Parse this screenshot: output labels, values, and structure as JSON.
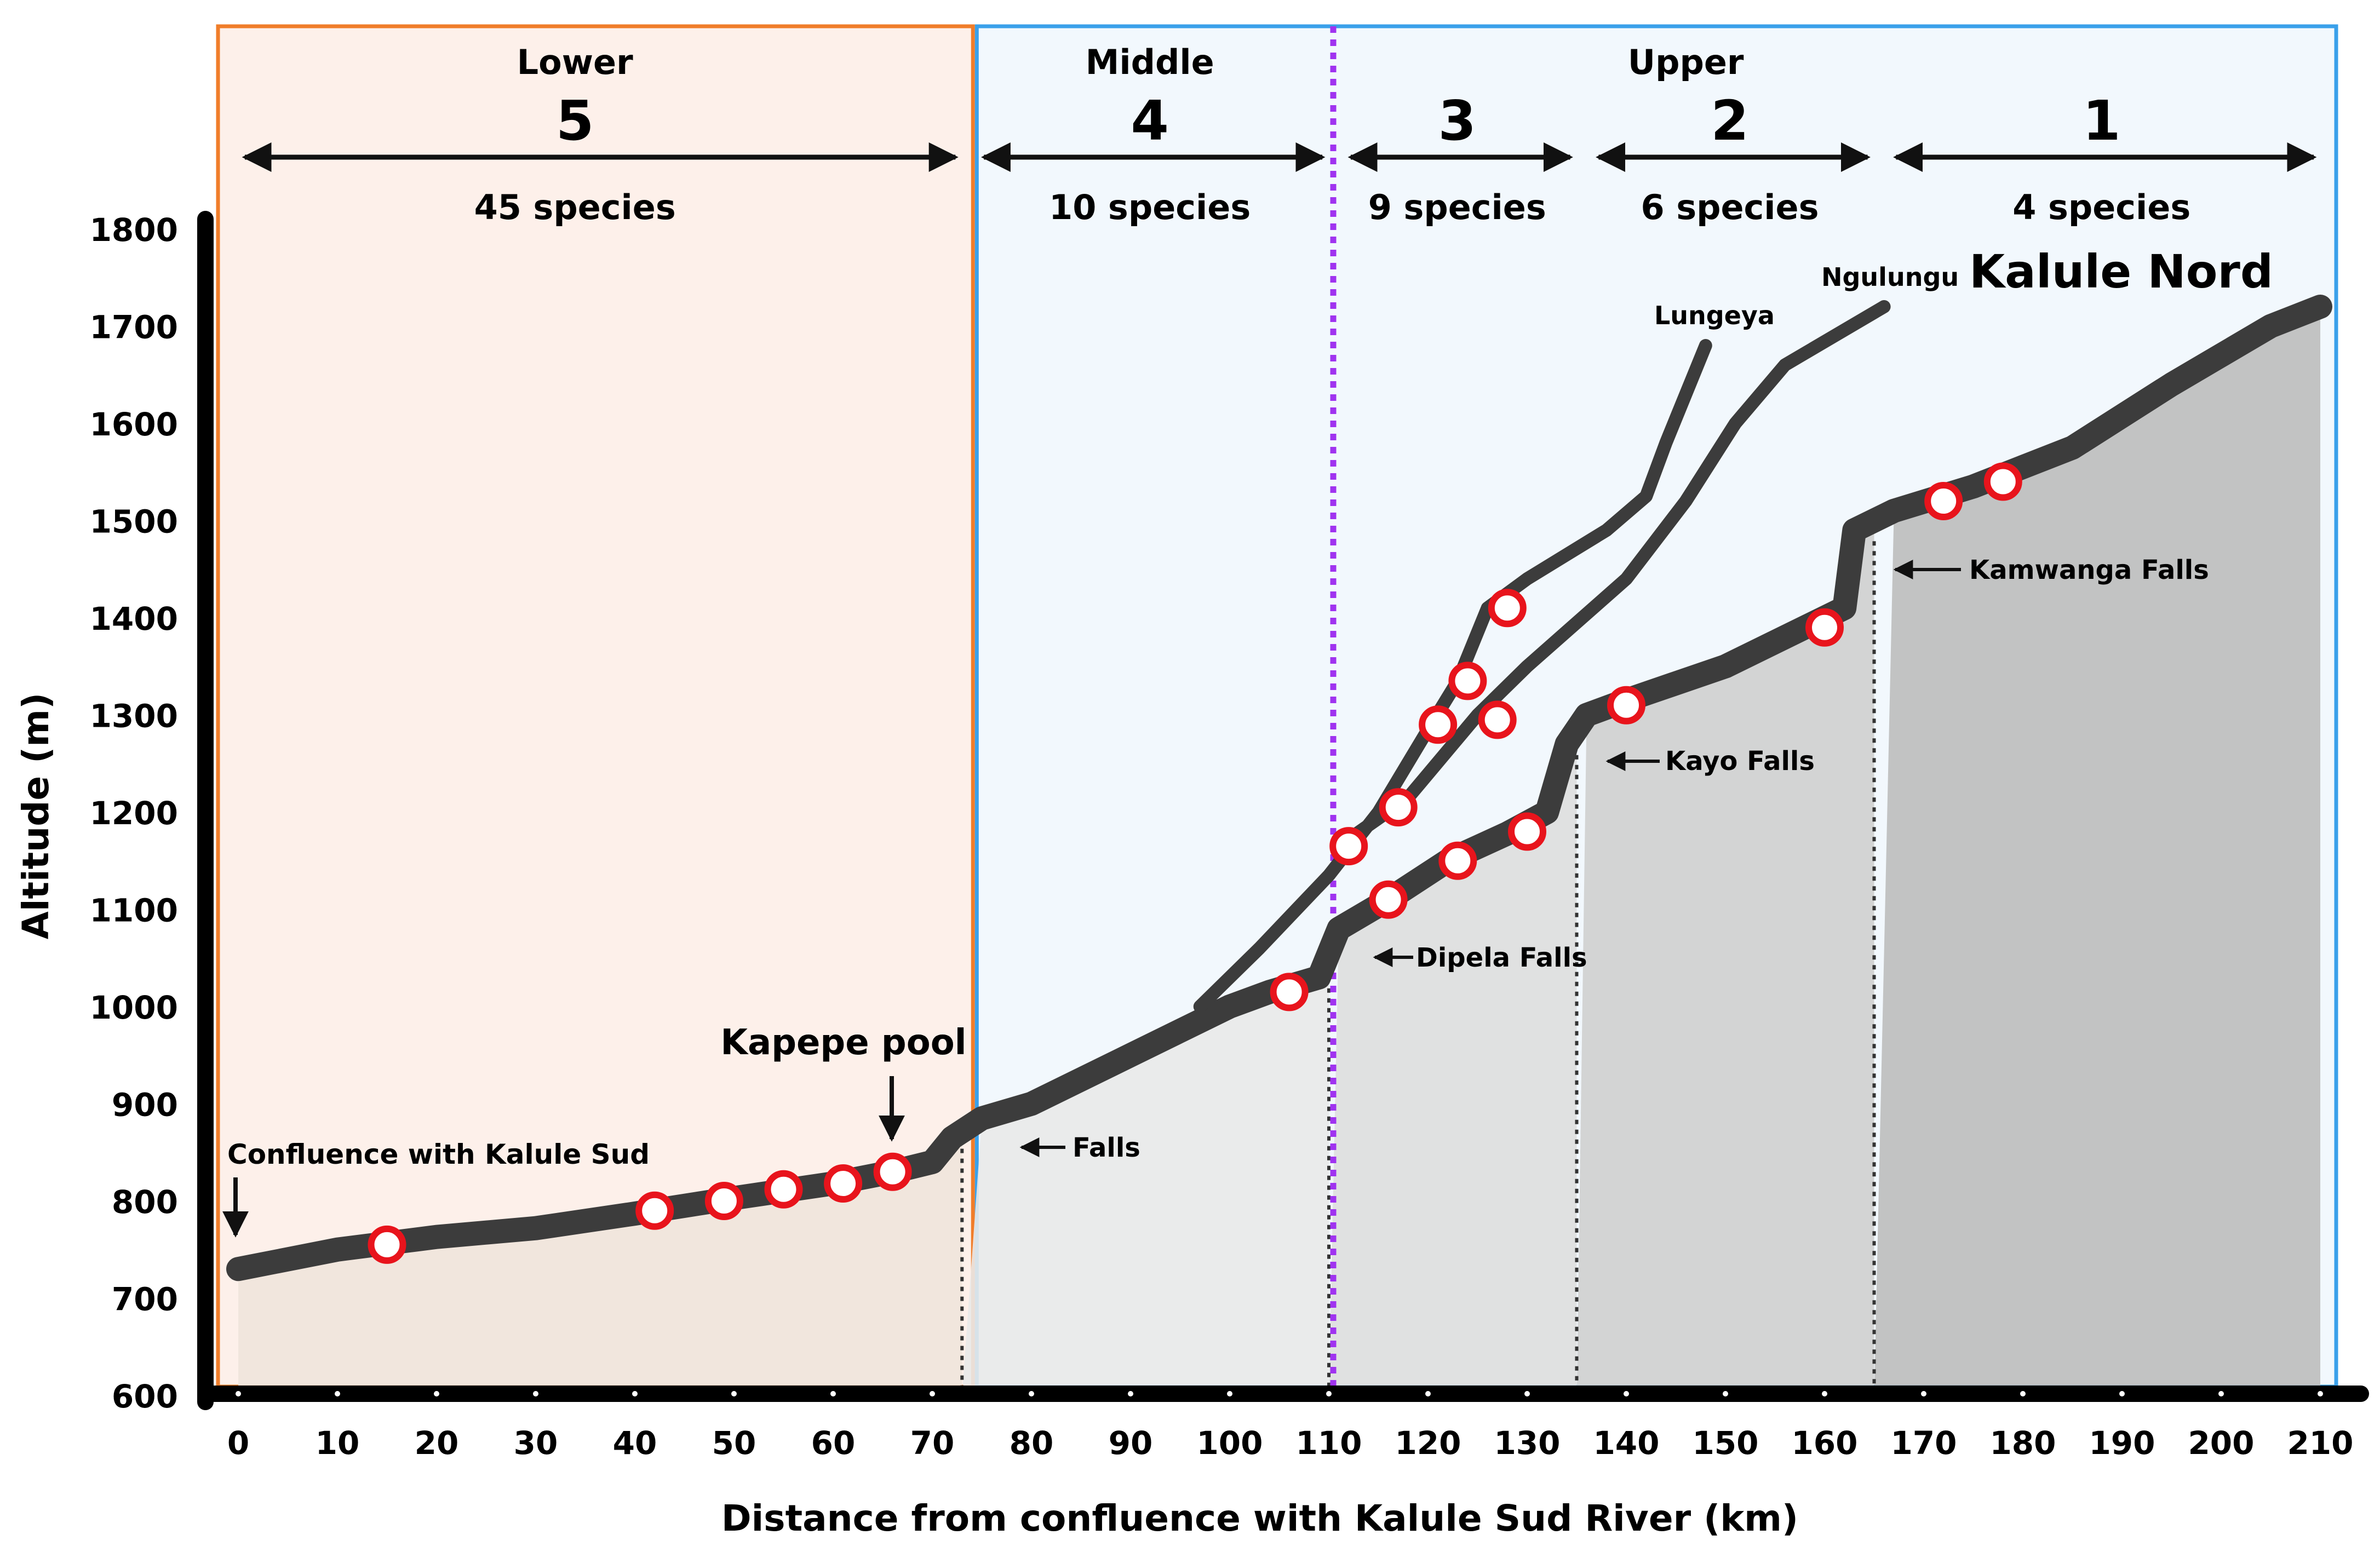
{
  "chart_data": {
    "type": "line",
    "title": "",
    "xlabel": "Distance from confluence with Kalule Sud River (km)",
    "ylabel": "Altitude (m)",
    "xlim": [
      0,
      210
    ],
    "ylim": [
      600,
      1800
    ],
    "x_ticks": [
      0,
      10,
      20,
      30,
      40,
      50,
      60,
      70,
      80,
      90,
      100,
      110,
      120,
      130,
      140,
      150,
      160,
      170,
      180,
      190,
      200,
      210
    ],
    "y_ticks": [
      600,
      700,
      800,
      900,
      1000,
      1100,
      1200,
      1300,
      1400,
      1500,
      1600,
      1700,
      1800
    ],
    "grid": false,
    "series": [
      {
        "name": "Kalule Nord",
        "points": [
          [
            0,
            730
          ],
          [
            10,
            750
          ],
          [
            20,
            763
          ],
          [
            30,
            772
          ],
          [
            40,
            787
          ],
          [
            50,
            803
          ],
          [
            60,
            818
          ],
          [
            66,
            830
          ],
          [
            70,
            840
          ],
          [
            72,
            865
          ],
          [
            75,
            885
          ],
          [
            80,
            900
          ],
          [
            90,
            950
          ],
          [
            100,
            1000
          ],
          [
            104,
            1015
          ],
          [
            109,
            1030
          ],
          [
            111,
            1080
          ],
          [
            116,
            1110
          ],
          [
            122,
            1150
          ],
          [
            128,
            1178
          ],
          [
            132,
            1200
          ],
          [
            134,
            1270
          ],
          [
            136,
            1300
          ],
          [
            140,
            1315
          ],
          [
            150,
            1350
          ],
          [
            158,
            1390
          ],
          [
            162,
            1410
          ],
          [
            163,
            1490
          ],
          [
            167,
            1510
          ],
          [
            175,
            1535
          ],
          [
            185,
            1575
          ],
          [
            195,
            1640
          ],
          [
            205,
            1700
          ],
          [
            210,
            1720
          ]
        ]
      },
      {
        "name": "Lungeya",
        "points": [
          [
            97,
            1000
          ],
          [
            103,
            1060
          ],
          [
            110,
            1135
          ],
          [
            115,
            1200
          ],
          [
            120,
            1285
          ],
          [
            123,
            1335
          ],
          [
            126,
            1410
          ],
          [
            130,
            1440
          ],
          [
            138,
            1490
          ],
          [
            142,
            1525
          ],
          [
            144,
            1580
          ],
          [
            148,
            1680
          ]
        ]
      },
      {
        "name": "Ngulungu",
        "points": [
          [
            111,
            1165
          ],
          [
            118,
            1215
          ],
          [
            125,
            1300
          ],
          [
            130,
            1350
          ],
          [
            140,
            1440
          ],
          [
            146,
            1520
          ],
          [
            151,
            1600
          ],
          [
            156,
            1660
          ],
          [
            166,
            1720
          ]
        ]
      }
    ],
    "sampling_sites": [
      {
        "x": 15,
        "y": 755
      },
      {
        "x": 42,
        "y": 790
      },
      {
        "x": 49,
        "y": 800
      },
      {
        "x": 55,
        "y": 812
      },
      {
        "x": 61,
        "y": 818
      },
      {
        "x": 66,
        "y": 830
      },
      {
        "x": 106,
        "y": 1015
      },
      {
        "x": 116,
        "y": 1110
      },
      {
        "x": 123,
        "y": 1150
      },
      {
        "x": 130,
        "y": 1180
      },
      {
        "x": 140,
        "y": 1310
      },
      {
        "x": 160,
        "y": 1390
      },
      {
        "x": 172,
        "y": 1520
      },
      {
        "x": 178,
        "y": 1540
      },
      {
        "x": 112,
        "y": 1165
      },
      {
        "x": 117,
        "y": 1205
      },
      {
        "x": 121,
        "y": 1290
      },
      {
        "x": 124,
        "y": 1335
      },
      {
        "x": 127,
        "y": 1295
      },
      {
        "x": 128,
        "y": 1410
      }
    ],
    "zones": [
      {
        "name": "Lower",
        "number": "5",
        "species": "45 species",
        "x_start": 0,
        "x_end": 73
      },
      {
        "name": "Middle",
        "number": "4",
        "species": "10 species",
        "x_start": 73,
        "x_end": 110
      },
      {
        "name": "",
        "number": "3",
        "species": "9 species",
        "x_start": 110,
        "x_end": 135
      },
      {
        "name": "Upper",
        "number": "2",
        "species": "6 species",
        "x_start": 135,
        "x_end": 165
      },
      {
        "name": "",
        "number": "1",
        "species": "4 species",
        "x_start": 165,
        "x_end": 210
      }
    ],
    "zone_boundaries_km": [
      73,
      110,
      135,
      165
    ],
    "falls_lines_km": [
      73,
      110,
      135,
      165
    ],
    "annotations": [
      {
        "text": "Confluence with Kalule Sud",
        "x": 0,
        "y": 730
      },
      {
        "text": "Kapepe pool",
        "x": 66,
        "y": 830
      },
      {
        "text": "Falls",
        "x": 75,
        "y": 880
      },
      {
        "text": "Dipela Falls",
        "x": 111,
        "y": 1045
      },
      {
        "text": "Kayo Falls",
        "x": 136,
        "y": 1250
      },
      {
        "text": "Kamwanga Falls",
        "x": 165,
        "y": 1450
      },
      {
        "text": "Lungeya",
        "x": 148,
        "y": 1680
      },
      {
        "text": "Ngulungu",
        "x": 166,
        "y": 1720
      },
      {
        "text": "Kalule Nord",
        "x": 200,
        "y": 1720
      }
    ],
    "colors": {
      "lower_border": "#f07d2a",
      "lower_fill": "#fdf0ea",
      "upper_border": "#3aa0ea",
      "upper_fill": "#f2f8fd",
      "boundary_dotted": "#a033f0",
      "river": "#3c3c3c",
      "site_fill": "#ffffff",
      "site_stroke": "#e8141c"
    }
  }
}
